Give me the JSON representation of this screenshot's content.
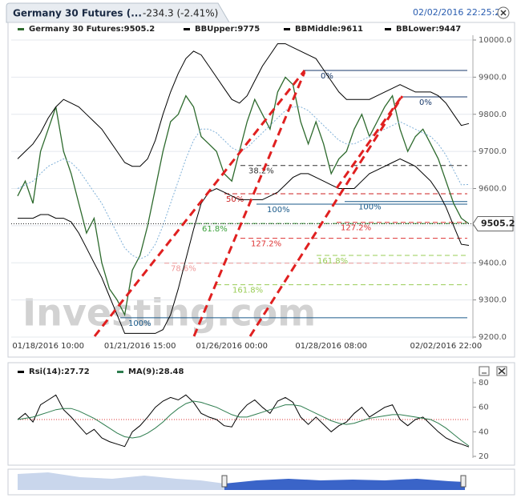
{
  "header": {
    "title": "Germany 30 Futures (...",
    "change": "-234.3 (-2.41%)",
    "timestamp": "02/02/2016 22:25:22",
    "watermark": "Investing.com"
  },
  "chart_data": [
    {
      "type": "line",
      "categories": [
        null,
        null,
        null,
        null,
        "01/18/2016 10:00",
        null,
        null,
        null,
        null,
        null,
        null,
        null,
        null,
        null,
        null,
        null,
        "01/21/2016 15:00",
        null,
        null,
        null,
        null,
        null,
        null,
        null,
        null,
        null,
        null,
        null,
        "01/26/2016 00:00",
        null,
        null,
        null,
        null,
        null,
        null,
        null,
        null,
        null,
        null,
        null,
        null,
        "01/28/2016 08:00",
        null,
        null,
        null,
        null,
        null,
        null,
        null,
        null,
        null,
        null,
        null,
        null,
        null,
        null,
        "02/02/2016 22:00",
        null,
        null,
        null
      ],
      "series": [
        {
          "name": "Germany 30 Futures:9505.2",
          "color": "#2d6a2d",
          "values": [
            9580,
            9620,
            9560,
            9700,
            9760,
            9820,
            9700,
            9640,
            9560,
            9480,
            9520,
            9400,
            9330,
            9300,
            9260,
            9380,
            9420,
            9500,
            9600,
            9700,
            9780,
            9800,
            9850,
            9820,
            9740,
            9720,
            9700,
            9640,
            9620,
            9700,
            9780,
            9840,
            9800,
            9760,
            9860,
            9900,
            9880,
            9780,
            9720,
            9780,
            9720,
            9640,
            9680,
            9700,
            9760,
            9800,
            9740,
            9780,
            9820,
            9850,
            9760,
            9700,
            9740,
            9760,
            9720,
            9680,
            9620,
            9560,
            9520,
            9505.2
          ]
        },
        {
          "name": "BBUpper:9775",
          "color": "#000000",
          "values": [
            9680,
            9700,
            9720,
            9750,
            9790,
            9820,
            9840,
            9830,
            9820,
            9800,
            9780,
            9760,
            9730,
            9700,
            9670,
            9660,
            9660,
            9680,
            9730,
            9800,
            9860,
            9910,
            9950,
            9970,
            9960,
            9930,
            9900,
            9870,
            9840,
            9830,
            9850,
            9890,
            9930,
            9960,
            9990,
            9990,
            9980,
            9970,
            9960,
            9950,
            9920,
            9890,
            9860,
            9840,
            9840,
            9840,
            9840,
            9850,
            9860,
            9870,
            9880,
            9870,
            9860,
            9860,
            9860,
            9850,
            9830,
            9800,
            9770,
            9775
          ]
        },
        {
          "name": "BBMiddle:9611",
          "color": "#7fb0d8",
          "values": [
            9600,
            9610,
            9620,
            9640,
            9660,
            9670,
            9680,
            9670,
            9650,
            9620,
            9590,
            9560,
            9520,
            9480,
            9440,
            9420,
            9410,
            9420,
            9450,
            9500,
            9560,
            9620,
            9680,
            9730,
            9760,
            9760,
            9750,
            9730,
            9710,
            9700,
            9710,
            9730,
            9750,
            9770,
            9790,
            9810,
            9820,
            9820,
            9810,
            9790,
            9770,
            9750,
            9730,
            9720,
            9720,
            9730,
            9740,
            9750,
            9760,
            9770,
            9780,
            9770,
            9760,
            9750,
            9740,
            9720,
            9690,
            9650,
            9610,
            9611
          ]
        },
        {
          "name": "BBLower:9447",
          "color": "#000000",
          "values": [
            9520,
            9520,
            9520,
            9530,
            9530,
            9520,
            9520,
            9510,
            9480,
            9440,
            9400,
            9360,
            9310,
            9260,
            9210,
            9210,
            9210,
            9210,
            9210,
            9220,
            9260,
            9330,
            9410,
            9490,
            9560,
            9590,
            9600,
            9590,
            9580,
            9570,
            9570,
            9570,
            9570,
            9580,
            9590,
            9610,
            9630,
            9640,
            9640,
            9630,
            9620,
            9610,
            9600,
            9600,
            9600,
            9620,
            9640,
            9650,
            9660,
            9670,
            9680,
            9670,
            9660,
            9640,
            9620,
            9590,
            9550,
            9500,
            9450,
            9447
          ]
        }
      ],
      "ylim": [
        9200,
        10000
      ],
      "yticks": [
        {
          "value": 9200,
          "label": "9200.0"
        },
        {
          "value": 9300,
          "label": "9300.0"
        },
        {
          "value": 9400,
          "label": "9400.0"
        },
        {
          "value": 9500,
          "label": "9500.0"
        },
        {
          "value": 9600,
          "label": "9600.0"
        },
        {
          "value": 9700,
          "label": "9700.0"
        },
        {
          "value": 9800,
          "label": "9800.0"
        },
        {
          "value": 9900,
          "label": "9900.0"
        },
        {
          "value": 10000,
          "label": "10000.0"
        }
      ],
      "grid": true,
      "fib_levels": [
        {
          "label": "0%",
          "value": 9918,
          "color": "#1a3a6b"
        },
        {
          "label": "0%",
          "value": 9847,
          "color": "#1a3a6b"
        },
        {
          "label": "38.2%",
          "value": 9662,
          "color": "#333333"
        },
        {
          "label": "50%",
          "value": 9586,
          "color": "#cc2222"
        },
        {
          "label": "100%",
          "value": 9558,
          "color": "#1a5a8a"
        },
        {
          "label": "61.8%",
          "value": 9506,
          "color": "#3aa03a"
        },
        {
          "label": "127.2%",
          "value": 9466,
          "color": "#dd3333"
        },
        {
          "label": "78.6%",
          "value": 9399,
          "color": "#ee9999"
        },
        {
          "label": "161.8%",
          "value": 9341,
          "color": "#99cc55"
        },
        {
          "label": "100%",
          "value": 9252,
          "color": "#1a5a8a"
        },
        {
          "label": "100%",
          "value": 9565,
          "color": "#1a5a8a"
        },
        {
          "label": "127.2%",
          "value": 9509,
          "color": "#dd3333"
        },
        {
          "label": "161.8%",
          "value": 9420,
          "color": "#99cc55"
        }
      ]
    },
    {
      "type": "line",
      "series": [
        {
          "name": "Rsi(14):27.72",
          "color": "#000000",
          "values": [
            50,
            55,
            48,
            62,
            66,
            70,
            58,
            52,
            45,
            38,
            42,
            35,
            32,
            30,
            28,
            40,
            45,
            52,
            60,
            65,
            68,
            66,
            70,
            64,
            55,
            52,
            50,
            45,
            44,
            55,
            62,
            66,
            60,
            55,
            65,
            68,
            64,
            52,
            46,
            52,
            46,
            40,
            45,
            48,
            55,
            60,
            52,
            56,
            60,
            62,
            50,
            45,
            50,
            52,
            46,
            40,
            35,
            32,
            30,
            27.72
          ]
        },
        {
          "name": "MA(9):28.48",
          "color": "#2e7d4f",
          "values": [
            50,
            51,
            52,
            54,
            56,
            58,
            59,
            59,
            57,
            54,
            51,
            47,
            43,
            39,
            36,
            35,
            36,
            39,
            43,
            48,
            54,
            59,
            63,
            65,
            64,
            62,
            60,
            57,
            54,
            52,
            52,
            54,
            56,
            58,
            60,
            62,
            62,
            61,
            58,
            55,
            52,
            49,
            47,
            46,
            47,
            49,
            51,
            52,
            53,
            54,
            54,
            53,
            52,
            51,
            50,
            47,
            43,
            38,
            33,
            28.48
          ]
        }
      ],
      "ylim": [
        20,
        80
      ],
      "yticks": [
        20,
        40,
        60,
        80
      ],
      "ref_line": 50
    }
  ]
}
